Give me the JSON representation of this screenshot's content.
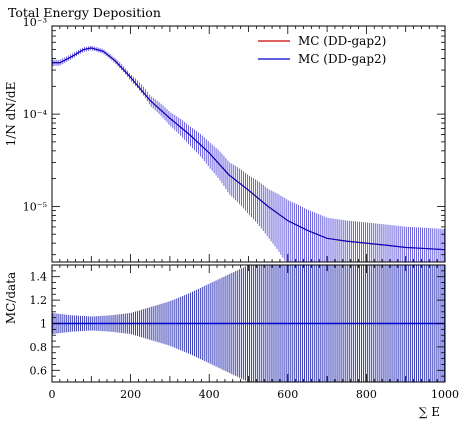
{
  "chart_data": {
    "title": "Total Energy Deposition",
    "main_panel": {
      "type": "line",
      "ylabel": "1/N dN/dE",
      "yscale": "log",
      "ylim": [
        2.5e-06,
        0.0009
      ],
      "yticks": [
        {
          "value": 1e-05,
          "label": "10⁻⁵"
        },
        {
          "value": 0.0001,
          "label": "10⁻⁴"
        },
        {
          "value": 0.001,
          "label": "10⁻³"
        }
      ],
      "series": [
        {
          "name": "MC (DD-gap2)",
          "color": "#cc0000",
          "x": [
            0,
            20,
            50,
            80,
            100,
            130,
            160,
            200,
            250,
            300,
            350,
            400,
            450,
            500,
            550,
            600,
            650,
            700,
            750,
            800,
            850,
            900,
            950,
            1000
          ],
          "y": [
            0.00036,
            0.00036,
            0.00042,
            0.0005,
            0.00052,
            0.00048,
            0.00038,
            0.00025,
            0.00014,
            9e-05,
            6e-05,
            3.8e-05,
            2.2e-05,
            1.5e-05,
            1e-05,
            7e-06,
            5.5e-06,
            4.5e-06,
            4.2e-06,
            4e-06,
            3.8e-06,
            3.6e-06,
            3.5e-06,
            3.4e-06
          ]
        },
        {
          "name": "MC (DD-gap2)",
          "color": "#0000cc",
          "x": [
            0,
            20,
            50,
            80,
            100,
            130,
            160,
            200,
            250,
            300,
            350,
            400,
            450,
            500,
            550,
            600,
            650,
            700,
            750,
            800,
            850,
            900,
            950,
            1000
          ],
          "y": [
            0.00036,
            0.00036,
            0.00042,
            0.0005,
            0.00052,
            0.00048,
            0.00038,
            0.00025,
            0.00014,
            9e-05,
            6e-05,
            3.8e-05,
            2.2e-05,
            1.5e-05,
            1e-05,
            7e-06,
            5.5e-06,
            4.5e-06,
            4.2e-06,
            4e-06,
            3.8e-06,
            3.6e-06,
            3.5e-06,
            3.4e-06
          ]
        }
      ],
      "legend_position": "top-right"
    },
    "ratio_panel": {
      "type": "line",
      "ylabel": "MC/data",
      "ylim": [
        0.5,
        1.5
      ],
      "yticks": [
        {
          "value": 0.6,
          "label": "0.6"
        },
        {
          "value": 0.8,
          "label": "0.8"
        },
        {
          "value": 1,
          "label": "1"
        },
        {
          "value": 1.2,
          "label": "1.2"
        },
        {
          "value": 1.4,
          "label": "1.4"
        }
      ],
      "reference_value": 1,
      "uncertainty_band": {
        "x": [
          0,
          50,
          100,
          150,
          200,
          250,
          300,
          350,
          400,
          450,
          500,
          550,
          600,
          1000
        ],
        "half_width": [
          0.09,
          0.07,
          0.06,
          0.07,
          0.09,
          0.14,
          0.19,
          0.26,
          0.34,
          0.42,
          0.5,
          0.6,
          0.75,
          0.75
        ]
      }
    },
    "xaxis": {
      "label": "∑ E",
      "xlim": [
        0,
        1000
      ],
      "ticks": [
        {
          "value": 0,
          "label": "0"
        },
        {
          "value": 200,
          "label": "200"
        },
        {
          "value": 400,
          "label": "400"
        },
        {
          "value": 600,
          "label": "600"
        },
        {
          "value": 800,
          "label": "800"
        },
        {
          "value": 1000,
          "label": "1000"
        }
      ]
    },
    "legend": [
      {
        "label": "MC (DD-gap2)",
        "color": "#cc0000"
      },
      {
        "label": "MC (DD-gap2)",
        "color": "#0000cc"
      }
    ]
  }
}
